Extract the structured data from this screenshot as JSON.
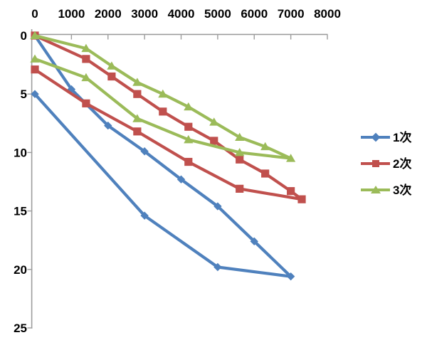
{
  "chart_data": {
    "type": "line",
    "title": "",
    "xlabel": "",
    "ylabel": "",
    "x_axis": {
      "position": "top",
      "range": [
        0,
        8000
      ],
      "ticks": [
        0,
        1000,
        2000,
        3000,
        4000,
        5000,
        6000,
        7000,
        8000
      ]
    },
    "y_axis": {
      "position": "left",
      "inverted": true,
      "range": [
        0,
        25
      ],
      "ticks": [
        0,
        5,
        10,
        15,
        20,
        25
      ]
    },
    "gridlines": false,
    "legend_position": "right",
    "series": [
      {
        "name": "1次",
        "color": "#4F81BD",
        "marker": "diamond",
        "points_out": [
          [
            0,
            0
          ],
          [
            1000,
            4.6
          ],
          [
            2000,
            7.7
          ],
          [
            3000,
            9.9
          ],
          [
            4000,
            12.3
          ],
          [
            5000,
            14.6
          ],
          [
            6000,
            17.6
          ],
          [
            7000,
            20.6
          ]
        ],
        "points_back": [
          [
            5000,
            19.8
          ],
          [
            3000,
            15.4
          ],
          [
            0,
            5.0
          ]
        ]
      },
      {
        "name": "2次",
        "color": "#C0504D",
        "marker": "square",
        "points_out": [
          [
            0,
            0
          ],
          [
            1400,
            2.0
          ],
          [
            2100,
            3.5
          ],
          [
            2800,
            5.0
          ],
          [
            3500,
            6.5
          ],
          [
            4200,
            7.8
          ],
          [
            4900,
            9.0
          ],
          [
            5600,
            10.6
          ],
          [
            6300,
            11.8
          ],
          [
            7000,
            13.3
          ],
          [
            7300,
            14.0
          ]
        ],
        "points_back": [
          [
            5600,
            13.1
          ],
          [
            4200,
            10.8
          ],
          [
            2800,
            8.2
          ],
          [
            1400,
            5.8
          ],
          [
            0,
            2.9
          ]
        ]
      },
      {
        "name": "3次",
        "color": "#9BBB59",
        "marker": "triangle",
        "points_out": [
          [
            0,
            0
          ],
          [
            1400,
            1.1
          ],
          [
            2100,
            2.6
          ],
          [
            2800,
            4.0
          ],
          [
            3500,
            5.0
          ],
          [
            4200,
            6.1
          ],
          [
            4900,
            7.4
          ],
          [
            5600,
            8.7
          ],
          [
            6300,
            9.5
          ],
          [
            7000,
            10.5
          ]
        ],
        "points_back": [
          [
            5600,
            10.0
          ],
          [
            4200,
            8.9
          ],
          [
            2800,
            7.1
          ],
          [
            1400,
            3.6
          ],
          [
            0,
            2.0
          ]
        ]
      }
    ]
  },
  "colors": {
    "axis": "#9C9C9C",
    "tick_text": "#000000",
    "background": "#FFFFFF"
  }
}
